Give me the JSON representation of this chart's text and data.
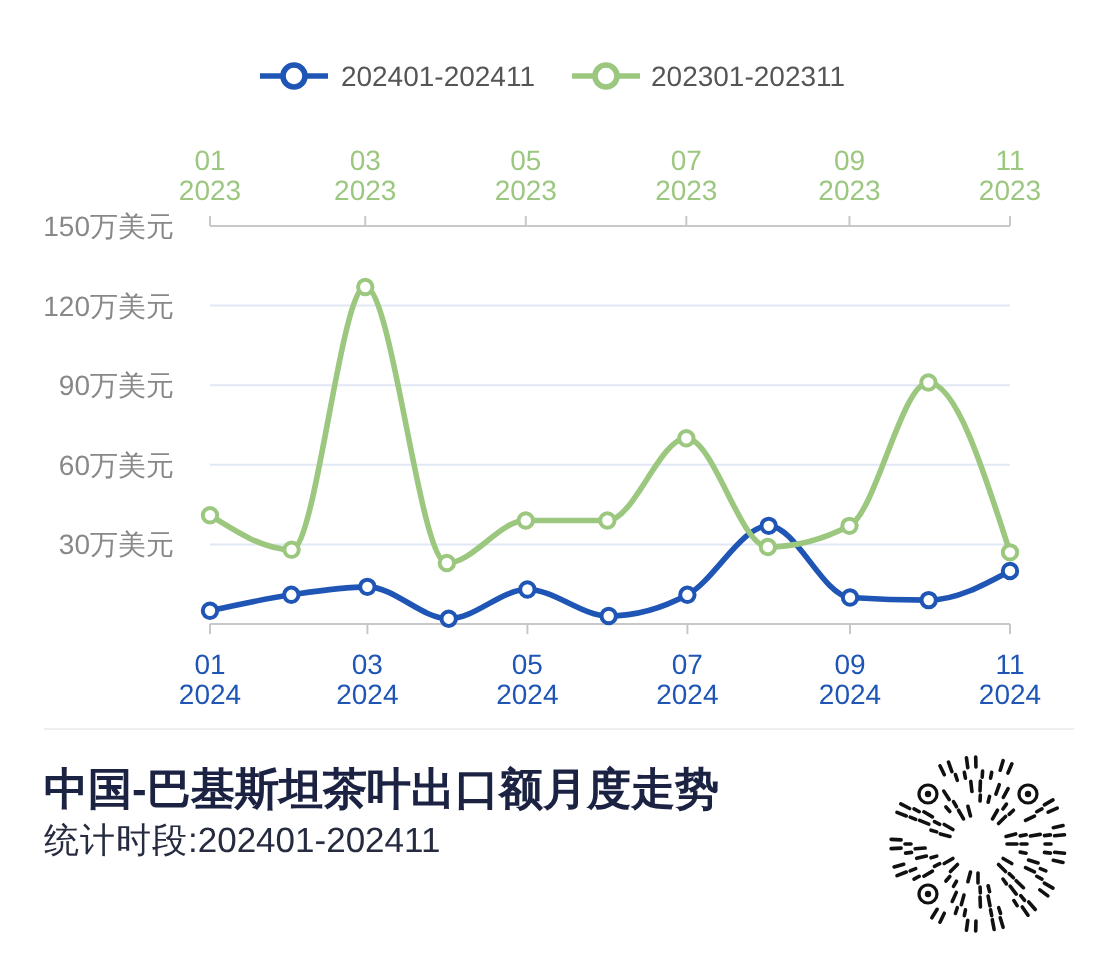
{
  "chart_data": {
    "type": "line",
    "title": "中国-巴基斯坦茶叶出口额月度走势",
    "subtitle": "统计时段:202401-202411",
    "x": [
      "2024-01",
      "2024-02",
      "2024-03",
      "2024-04",
      "2024-05",
      "2024-06",
      "2024-07",
      "2024-08",
      "2024-09",
      "2024-10",
      "2024-11"
    ],
    "series": [
      {
        "name": "202401-202411",
        "color": "#1f55b5",
        "values": [
          5,
          11,
          14,
          2,
          13,
          3,
          11,
          37,
          10,
          9,
          20
        ]
      },
      {
        "name": "202301-202311",
        "color": "#9cc77f",
        "axis": "x2",
        "x": [
          "2023-01",
          "2023-02",
          "2023-03",
          "2023-04",
          "2023-05",
          "2023-06",
          "2023-07",
          "2023-08",
          "2023-09",
          "2023-10",
          "2023-11"
        ],
        "values": [
          41,
          28,
          127,
          23,
          39,
          39,
          70,
          29,
          37,
          91,
          27
        ]
      }
    ],
    "xlim": [
      "2024-01",
      "2024-11"
    ],
    "xticks": [
      {
        "value": "2024-01",
        "label": "01\n2024"
      },
      {
        "value": "2024-03",
        "label": "03\n2024"
      },
      {
        "value": "2024-05",
        "label": "05\n2024"
      },
      {
        "value": "2024-07",
        "label": "07\n2024"
      },
      {
        "value": "2024-09",
        "label": "09\n2024"
      },
      {
        "value": "2024-11",
        "label": "11\n2024"
      }
    ],
    "x2lim": [
      "2023-01",
      "2023-11"
    ],
    "x2ticks": [
      {
        "value": "2023-01",
        "label": "01\n2023"
      },
      {
        "value": "2023-03",
        "label": "03\n2023"
      },
      {
        "value": "2023-05",
        "label": "05\n2023"
      },
      {
        "value": "2023-07",
        "label": "07\n2023"
      },
      {
        "value": "2023-09",
        "label": "09\n2023"
      },
      {
        "value": "2023-11",
        "label": "11\n2023"
      }
    ],
    "ylim": [
      0,
      150
    ],
    "yticks": [
      {
        "value": 30,
        "label": "30万美元"
      },
      {
        "value": 60,
        "label": "60万美元"
      },
      {
        "value": 90,
        "label": "90万美元"
      },
      {
        "value": 120,
        "label": "120万美元"
      },
      {
        "value": 150,
        "label": "150万美元"
      }
    ],
    "grid": "y",
    "legend": "top",
    "marker": "circle",
    "line_style": "solid"
  }
}
